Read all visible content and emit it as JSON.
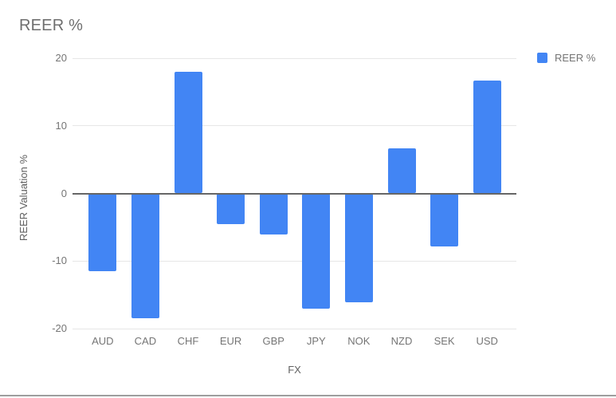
{
  "title": "REER %",
  "legend": {
    "items": [
      {
        "label": "REER %",
        "color": "#4285F4"
      }
    ]
  },
  "colors": {
    "bar": "#4285F4",
    "gridline": "#e6e6e6",
    "zero_line": "#666666",
    "tick_text": "#757575",
    "axis_title_text": "#616161",
    "title_text": "#6e6e6e",
    "bottom_rule": "#9e9e9e"
  },
  "chart_data": {
    "type": "bar",
    "title": "REER %",
    "categories": [
      "AUD",
      "CAD",
      "CHF",
      "EUR",
      "GBP",
      "JPY",
      "NOK",
      "NZD",
      "SEK",
      "USD"
    ],
    "series": [
      {
        "name": "REER %",
        "values": [
          -11.5,
          -18.5,
          18.0,
          -4.5,
          -6.1,
          -17.1,
          -16.1,
          6.7,
          -7.8,
          16.7
        ]
      }
    ],
    "xlabel": "FX",
    "ylabel": "REER Valuation %",
    "ylim": [
      -20,
      20
    ],
    "yticks": [
      20,
      10,
      0,
      -10,
      -20
    ],
    "grid": true,
    "legend_position": "top-right"
  }
}
